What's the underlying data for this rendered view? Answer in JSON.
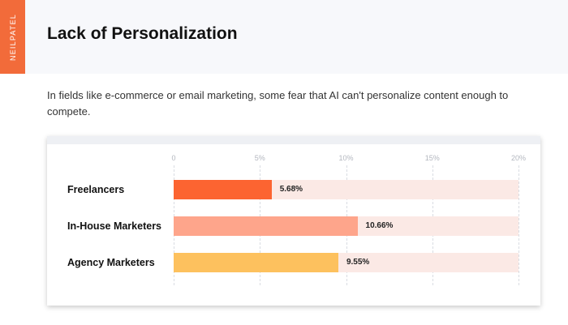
{
  "brand": {
    "label": "NEILPATEL",
    "color": "#f26b3a"
  },
  "header": {
    "title": "Lack of Personalization"
  },
  "description": "In fields like e-commerce or email marketing, some fear that AI can't personalize content enough to compete.",
  "chart_data": {
    "type": "bar",
    "orientation": "horizontal",
    "categories": [
      "Freelancers",
      "In-House Marketers",
      "Agency Marketers"
    ],
    "values": [
      5.68,
      10.66,
      9.55
    ],
    "value_labels": [
      "5.68%",
      "10.66%",
      "9.55%"
    ],
    "colors": [
      "#fc6431",
      "#fea58b",
      "#fdc15e"
    ],
    "track_color": "#fbe9e5",
    "x_ticks": [
      0,
      5,
      10,
      15,
      20
    ],
    "x_tick_labels": [
      "0",
      "5%",
      "10%",
      "15%",
      "20%"
    ],
    "xlim": [
      0,
      20
    ],
    "grid": true,
    "legend": "none"
  }
}
